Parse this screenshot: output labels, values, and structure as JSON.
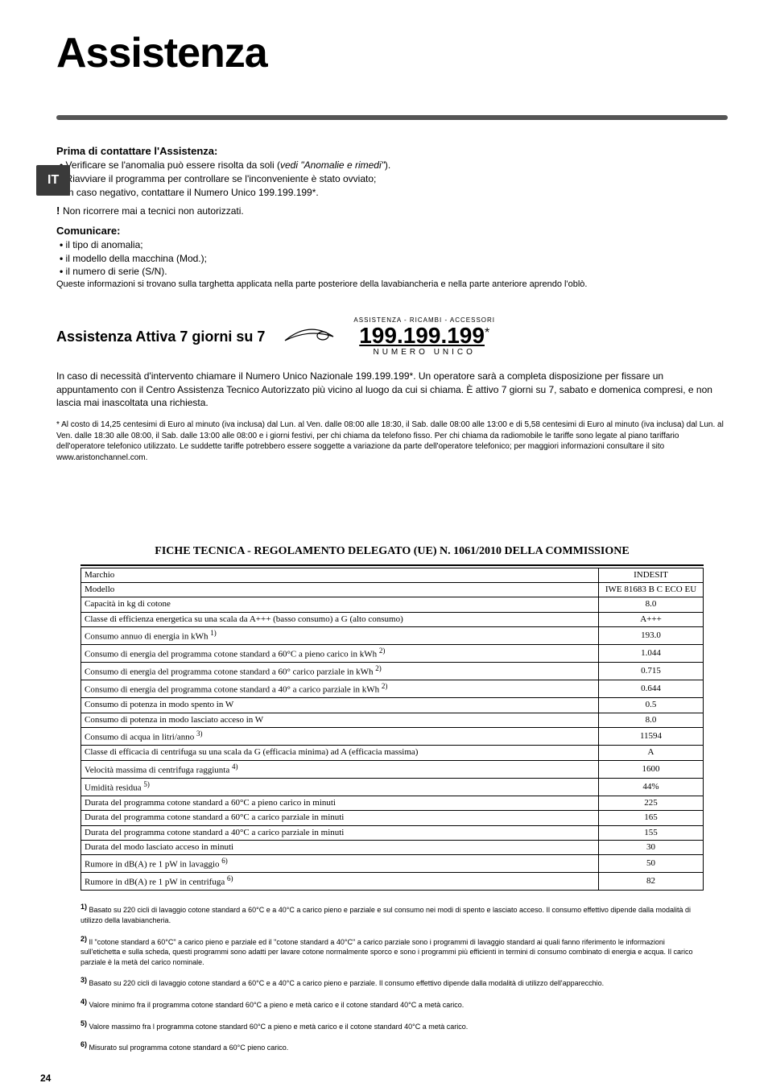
{
  "page": {
    "title": "Assistenza",
    "lang_tab": "IT",
    "page_number": "24"
  },
  "section1": {
    "heading": "Prima di contattare l'Assistenza:",
    "items": [
      "Verificare se l'anomalia può essere risolta da soli (",
      "Riavviare il programma per controllare se l'inconveniente è stato ovviato;",
      "In caso negativo, contattare il Numero Unico 199.199.199*."
    ],
    "italic_ref": "vedi \"Anomalie e rimedi\"",
    "item0_suffix": ").",
    "warning": "Non ricorrere mai a tecnici non autorizzati."
  },
  "section2": {
    "heading": "Comunicare:",
    "items": [
      "il tipo di anomalia;",
      "il modello della macchina (Mod.);",
      "il numero di serie (S/N)."
    ],
    "after": "Queste informazioni si trovano sulla targhetta applicata nella parte posteriore della lavabiancheria e nella parte anteriore aprendo l'oblò."
  },
  "assist": {
    "title": "Assistenza Attiva 7 giorni su 7",
    "phone_top": "ASSISTENZA - RICAMBI - ACCESSORI",
    "phone_number": "199.199.199",
    "phone_star": "*",
    "phone_sub": "NUMERO UNICO",
    "para": "In caso di necessità d'intervento chiamare il Numero Unico Nazionale 199.199.199*. Un operatore sarà a completa disposizione per fissare un appuntamento con il Centro Assistenza Tecnico Autorizzato più vicino al luogo da cui si chiama. È attivo 7 giorni su 7, sabato e domenica compresi, e non lascia mai inascoltata una richiesta.",
    "fine": "* Al costo di 14,25 centesimi di Euro al minuto (iva inclusa) dal Lun. al Ven. dalle 08:00 alle 18:30, il Sab. dalle 08:00 alle 13:00 e di 5,58 centesimi di Euro al minuto (iva inclusa) dal Lun. al Ven. dalle 18:30 alle 08:00, il Sab. dalle 13:00 alle 08:00 e i giorni festivi, per chi chiama da telefono fisso. Per chi chiama da radiomobile le tariffe sono legate al piano tariffario dell'operatore telefonico utilizzato. Le suddette tariffe potrebbero essere soggette a variazione da parte dell'operatore telefonico; per maggiori informazioni consultare il sito www.aristonchannel.com."
  },
  "tech": {
    "title": "FICHE TECNICA - REGOLAMENTO DELEGATO (UE) N. 1061/2010 DELLA COMMISSIONE",
    "rows": [
      {
        "label": "Marchio",
        "sup": "",
        "value": "INDESIT"
      },
      {
        "label": "Modello",
        "sup": "",
        "value": "IWE 81683 B C ECO EU"
      },
      {
        "label": "Capacità in kg di cotone",
        "sup": "",
        "value": "8.0"
      },
      {
        "label": "Classe di efficienza energetica su una scala da A+++ (basso consumo) a G (alto consumo)",
        "sup": "",
        "value": "A+++"
      },
      {
        "label": "Consumo annuo di energia in kWh ",
        "sup": "1)",
        "value": "193.0"
      },
      {
        "label": "Consumo di energia del programma cotone standard a 60°C a pieno carico in kWh ",
        "sup": "2)",
        "value": "1.044"
      },
      {
        "label": "Consumo di energia del programma cotone standard a 60° carico parziale in kWh ",
        "sup": "2)",
        "value": "0.715"
      },
      {
        "label": "Consumo di energia del programma cotone standard a 40° a carico parziale in kWh ",
        "sup": "2)",
        "value": "0.644"
      },
      {
        "label": "Consumo di potenza in modo spento in W",
        "sup": "",
        "value": "0.5"
      },
      {
        "label": "Consumo di potenza in modo lasciato acceso in W",
        "sup": "",
        "value": "8.0"
      },
      {
        "label": "Consumo di acqua in litri/anno ",
        "sup": "3)",
        "value": "11594"
      },
      {
        "label": "Classe di efficacia di centrifuga su una scala da G (efficacia minima) ad A (efficacia massima)",
        "sup": "",
        "value": "A"
      },
      {
        "label": "Velocità massima di centrifuga raggiunta ",
        "sup": "4)",
        "value": "1600"
      },
      {
        "label": "Umidità residua ",
        "sup": "5)",
        "value": "44%"
      },
      {
        "label": "Durata del programma cotone standard a 60°C a pieno carico in minuti",
        "sup": "",
        "value": "225"
      },
      {
        "label": "Durata del programma cotone standard a 60°C a carico parziale in minuti",
        "sup": "",
        "value": "165"
      },
      {
        "label": "Durata del programma cotone standard a 40°C a carico parziale in minuti",
        "sup": "",
        "value": "155"
      },
      {
        "label": "Durata del modo lasciato acceso in minuti",
        "sup": "",
        "value": "30"
      },
      {
        "label": "Rumore in dB(A) re 1 pW in lavaggio ",
        "sup": "6)",
        "value": "50"
      },
      {
        "label": "Rumore in dB(A) re 1 pW in centrifuga ",
        "sup": "6)",
        "value": "82"
      }
    ],
    "footnotes": [
      {
        "sup": "1)",
        "text": " Basato su 220 cicli di lavaggio cotone standard a 60°C e a 40°C a carico pieno e parziale e sul consumo nei modi di spento e lasciato acceso. Il consumo effettivo dipende dalla modalità di utilizzo della lavabiancheria."
      },
      {
        "sup": "2)",
        "text": " Il \"cotone standard a 60°C\" a carico pieno e parziale ed il \"cotone standard a 40°C\" a carico parziale sono i programmi di lavaggio standard ai quali fanno riferimento le informazioni sull'etichetta e sulla scheda, questi programmi sono adatti per lavare cotone normalmente sporco e sono i programmi più efficienti in termini di consumo combinato di energia e acqua. Il carico parziale è la metà del carico nominale."
      },
      {
        "sup": "3)",
        "text": " Basato su 220 cicli di lavaggio cotone standard a 60°C e a 40°C a carico pieno e parziale. Il consumo effettivo dipende dalla modalità di utilizzo dell'apparecchio."
      },
      {
        "sup": "4)",
        "text": " Valore minimo fra il programma cotone standard 60°C a pieno e metà carico e il cotone standard 40°C a metà carico."
      },
      {
        "sup": "5)",
        "text": " Valore massimo fra l programma cotone standard 60°C a pieno e metà carico e il cotone standard 40°C a metà carico."
      },
      {
        "sup": "6)",
        "text": " Misurato sul programma cotone standard a 60°C pieno carico."
      }
    ]
  }
}
